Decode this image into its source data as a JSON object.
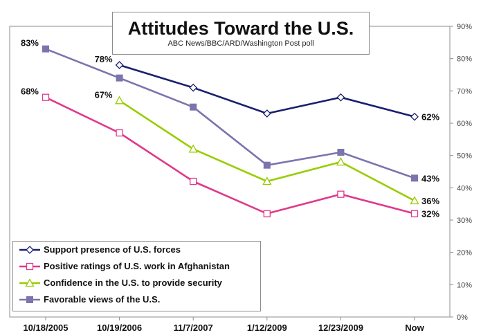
{
  "chart_data": {
    "type": "line",
    "title": "Attitudes Toward the U.S.",
    "subtitle": "ABC News/BBC/ARD/Washington Post poll",
    "categories": [
      "10/18/2005",
      "10/19/2006",
      "11/7/2007",
      "1/12/2009",
      "12/23/2009",
      "Now"
    ],
    "ylim": [
      0,
      90
    ],
    "yticks": [
      "0%",
      "10%",
      "20%",
      "30%",
      "40%",
      "50%",
      "60%",
      "70%",
      "80%",
      "90%"
    ],
    "y_axis_side": "right",
    "grid": false,
    "legend_position": "bottom-left",
    "series": [
      {
        "name": "Support presence of U.S. forces",
        "color": "#1a1f6e",
        "marker": "diamond-open",
        "values": [
          null,
          78,
          71,
          63,
          68,
          62
        ],
        "labels": [
          null,
          "78%",
          null,
          null,
          null,
          "62%"
        ]
      },
      {
        "name": "Positive ratings of U.S. work in Afghanistan",
        "color": "#e0388c",
        "marker": "square-open",
        "values": [
          68,
          57,
          42,
          32,
          38,
          32
        ],
        "labels": [
          "68%",
          null,
          null,
          null,
          null,
          "32%"
        ]
      },
      {
        "name": "Confidence in the U.S. to provide security",
        "color": "#99cc00",
        "marker": "triangle-open",
        "values": [
          null,
          67,
          52,
          42,
          48,
          36
        ],
        "labels": [
          null,
          "67%",
          null,
          null,
          null,
          "36%"
        ]
      },
      {
        "name": "Favorable views of the U.S.",
        "color": "#7b74ad",
        "marker": "square-filled",
        "values": [
          83,
          74,
          65,
          47,
          51,
          43
        ],
        "labels": [
          "83%",
          null,
          null,
          null,
          null,
          "43%"
        ]
      }
    ]
  }
}
